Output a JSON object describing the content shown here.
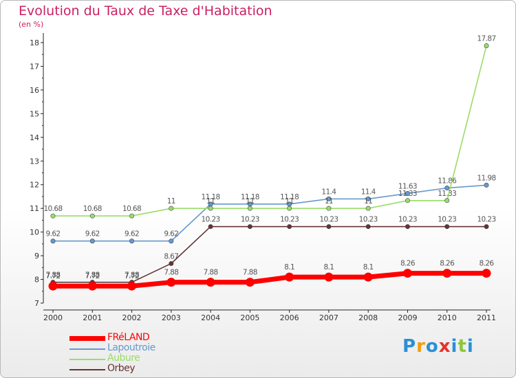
{
  "chart_data": {
    "type": "line",
    "title": "Evolution du Taux de Taxe d'Habitation",
    "subtitle": "(en %)",
    "x": [
      "2000",
      "2001",
      "2002",
      "2003",
      "2004",
      "2005",
      "2006",
      "2007",
      "2008",
      "2009",
      "2010",
      "2011"
    ],
    "ylim": [
      7,
      18
    ],
    "yticks": [
      "7",
      "8",
      "9",
      "10",
      "11",
      "12",
      "13",
      "14",
      "15",
      "16",
      "17",
      "18"
    ],
    "grid": false,
    "legend_position": "bottom-left",
    "series": [
      {
        "name": "FRéLAND",
        "color": "#ff0000",
        "values": [
          7.72,
          7.72,
          7.72,
          7.88,
          7.88,
          7.88,
          8.1,
          8.1,
          8.1,
          8.26,
          8.26,
          8.26
        ]
      },
      {
        "name": "Lapoutroie",
        "color": "#6699cc",
        "values": [
          9.62,
          9.62,
          9.62,
          9.62,
          11.18,
          11.18,
          11.18,
          11.4,
          11.4,
          11.63,
          11.86,
          11.98
        ]
      },
      {
        "name": "Aubure",
        "color": "#99dd66",
        "values": [
          10.68,
          10.68,
          10.68,
          11,
          11,
          11,
          11,
          11,
          11,
          11.33,
          11.33,
          17.87
        ]
      },
      {
        "name": "Orbey",
        "color": "#663333",
        "values": [
          7.88,
          7.88,
          7.88,
          8.67,
          10.23,
          10.23,
          10.23,
          10.23,
          10.23,
          10.23,
          10.23,
          10.23
        ]
      }
    ]
  },
  "brand": {
    "letters": [
      "P",
      "r",
      "o",
      "x",
      "i",
      "t",
      "i"
    ],
    "colors": [
      "#2b8fd6",
      "#f39c12",
      "#2b8fd6",
      "#e5332a",
      "#2b8fd6",
      "#8cc63f",
      "#2b8fd6"
    ]
  }
}
